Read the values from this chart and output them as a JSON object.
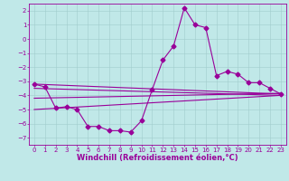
{
  "title": "",
  "xlabel": "Windchill (Refroidissement éolien,°C)",
  "bg_color": "#c0e8e8",
  "grid_color": "#a0cccc",
  "line_color": "#990099",
  "xlim": [
    -0.5,
    23.5
  ],
  "ylim": [
    -7.5,
    2.5
  ],
  "yticks": [
    2,
    1,
    0,
    -1,
    -2,
    -3,
    -4,
    -5,
    -6,
    -7
  ],
  "xticks": [
    0,
    1,
    2,
    3,
    4,
    5,
    6,
    7,
    8,
    9,
    10,
    11,
    12,
    13,
    14,
    15,
    16,
    17,
    18,
    19,
    20,
    21,
    22,
    23
  ],
  "line1_x": [
    0,
    1,
    2,
    3,
    4,
    5,
    6,
    7,
    8,
    9,
    10,
    11,
    12,
    13,
    14,
    15,
    16,
    17,
    18,
    19,
    20,
    21,
    22,
    23
  ],
  "line1_y": [
    -3.2,
    -3.4,
    -4.9,
    -4.8,
    -5.0,
    -6.2,
    -6.2,
    -6.5,
    -6.5,
    -6.6,
    -5.8,
    -3.6,
    -1.5,
    -0.5,
    2.2,
    1.0,
    0.8,
    -2.6,
    -2.3,
    -2.5,
    -3.1,
    -3.1,
    -3.5,
    -3.9
  ],
  "line2_x": [
    0,
    23
  ],
  "line2_y": [
    -3.2,
    -3.9
  ],
  "line3_x": [
    0,
    23
  ],
  "line3_y": [
    -3.5,
    -4.0
  ],
  "line4_x": [
    0,
    23
  ],
  "line4_y": [
    -4.2,
    -3.85
  ],
  "line5_x": [
    0,
    23
  ],
  "line5_y": [
    -5.0,
    -4.0
  ],
  "markersize": 2.5,
  "linewidth": 0.8,
  "tick_fontsize": 5,
  "label_fontsize": 6
}
